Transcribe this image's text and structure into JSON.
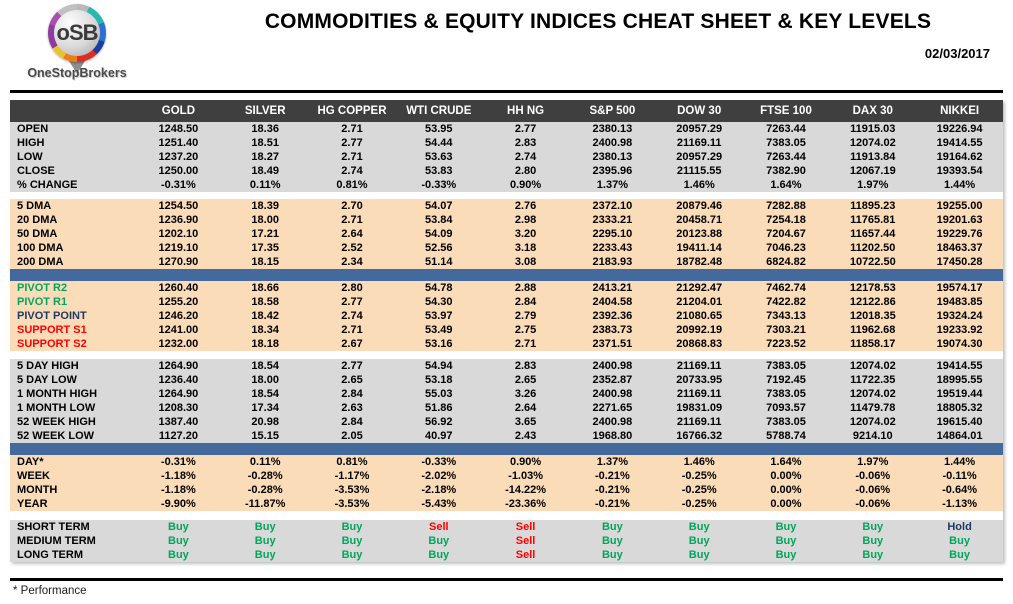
{
  "page": {
    "logo": {
      "monogram": "oSB",
      "brand": "OneStopBrokers"
    },
    "title": "COMMODITIES & EQUITY INDICES CHEAT SHEET & KEY LEVELS",
    "date": "02/03/2017",
    "footnote": "* Performance"
  },
  "colors": {
    "header_bg": "#3F3F3F",
    "gray_bg": "#D9D9D9",
    "peach_bg": "#FBDCB9",
    "divider_blue": "#44699D",
    "buy": "#00A65C",
    "sell": "#FF0000",
    "hold": "#1F3864",
    "resistance": "#00A65C",
    "support": "#FF0000",
    "pivot_point": "#1F3864"
  },
  "table": {
    "columns": [
      "GOLD",
      "SILVER",
      "HG COPPER",
      "WTI CRUDE",
      "HH NG",
      "S&P 500",
      "DOW 30",
      "FTSE 100",
      "DAX 30",
      "NIKKEI"
    ],
    "sections": [
      {
        "type": "rows",
        "bg": "gray",
        "name": "ohlc",
        "rows": [
          {
            "label": "OPEN",
            "values": [
              "1248.50",
              "18.36",
              "2.71",
              "53.95",
              "2.77",
              "2380.13",
              "20957.29",
              "7263.44",
              "11915.03",
              "19226.94"
            ]
          },
          {
            "label": "HIGH",
            "values": [
              "1251.40",
              "18.51",
              "2.77",
              "54.44",
              "2.83",
              "2400.98",
              "21169.11",
              "7383.05",
              "12074.02",
              "19414.55"
            ]
          },
          {
            "label": "LOW",
            "values": [
              "1237.20",
              "18.27",
              "2.71",
              "53.63",
              "2.74",
              "2380.13",
              "20957.29",
              "7263.44",
              "11913.84",
              "19164.62"
            ]
          },
          {
            "label": "CLOSE",
            "values": [
              "1250.00",
              "18.49",
              "2.74",
              "53.83",
              "2.80",
              "2395.96",
              "21115.55",
              "7382.90",
              "12067.19",
              "19393.54"
            ]
          },
          {
            "label": "% CHANGE",
            "values": [
              "-0.31%",
              "0.11%",
              "0.81%",
              "-0.33%",
              "0.90%",
              "1.37%",
              "1.46%",
              "1.64%",
              "1.97%",
              "1.44%"
            ]
          }
        ]
      },
      {
        "type": "gap",
        "h": 7
      },
      {
        "type": "rows",
        "bg": "peach",
        "name": "moving-averages",
        "rows": [
          {
            "label": "5 DMA",
            "values": [
              "1254.50",
              "18.39",
              "2.70",
              "54.07",
              "2.76",
              "2372.10",
              "20879.46",
              "7282.88",
              "11895.23",
              "19255.00"
            ]
          },
          {
            "label": "20 DMA",
            "values": [
              "1236.90",
              "18.00",
              "2.71",
              "53.84",
              "2.98",
              "2333.21",
              "20458.71",
              "7254.18",
              "11765.81",
              "19201.63"
            ]
          },
          {
            "label": "50 DMA",
            "values": [
              "1202.10",
              "17.21",
              "2.64",
              "54.09",
              "3.20",
              "2295.10",
              "20123.88",
              "7204.67",
              "11657.44",
              "19229.76"
            ]
          },
          {
            "label": "100 DMA",
            "values": [
              "1219.10",
              "17.35",
              "2.52",
              "52.56",
              "3.18",
              "2233.43",
              "19411.14",
              "7046.23",
              "11202.50",
              "18463.37"
            ]
          },
          {
            "label": "200 DMA",
            "values": [
              "1270.90",
              "18.15",
              "2.34",
              "51.14",
              "3.08",
              "2183.93",
              "18782.48",
              "6824.82",
              "10722.50",
              "17450.28"
            ]
          }
        ]
      },
      {
        "type": "divider",
        "h": 12
      },
      {
        "type": "rows",
        "bg": "peach",
        "name": "pivots",
        "rows": [
          {
            "label": "PIVOT R2",
            "label_color": "resistance",
            "values": [
              "1260.40",
              "18.66",
              "2.80",
              "54.78",
              "2.88",
              "2413.21",
              "21292.47",
              "7462.74",
              "12178.53",
              "19574.17"
            ]
          },
          {
            "label": "PIVOT R1",
            "label_color": "resistance",
            "values": [
              "1255.20",
              "18.58",
              "2.77",
              "54.30",
              "2.84",
              "2404.58",
              "21204.01",
              "7422.82",
              "12122.86",
              "19483.85"
            ]
          },
          {
            "label": "PIVOT POINT",
            "label_color": "pivot_point",
            "values": [
              "1246.20",
              "18.42",
              "2.74",
              "53.97",
              "2.79",
              "2392.36",
              "21080.65",
              "7343.13",
              "12018.35",
              "19324.24"
            ]
          },
          {
            "label": "SUPPORT S1",
            "label_color": "support",
            "values": [
              "1241.00",
              "18.34",
              "2.71",
              "53.49",
              "2.75",
              "2383.73",
              "20992.19",
              "7303.21",
              "11962.68",
              "19233.92"
            ]
          },
          {
            "label": "SUPPORT S2",
            "label_color": "support",
            "values": [
              "1232.00",
              "18.18",
              "2.67",
              "53.16",
              "2.71",
              "2371.51",
              "20868.83",
              "7223.52",
              "11858.17",
              "19074.30"
            ]
          }
        ]
      },
      {
        "type": "gap",
        "h": 8
      },
      {
        "type": "rows",
        "bg": "gray",
        "name": "ranges",
        "rows": [
          {
            "label": "5 DAY HIGH",
            "values": [
              "1264.90",
              "18.54",
              "2.77",
              "54.94",
              "2.83",
              "2400.98",
              "21169.11",
              "7383.05",
              "12074.02",
              "19414.55"
            ]
          },
          {
            "label": "5 DAY LOW",
            "values": [
              "1236.40",
              "18.00",
              "2.65",
              "53.18",
              "2.65",
              "2352.87",
              "20733.95",
              "7192.45",
              "11722.35",
              "18995.55"
            ]
          },
          {
            "label": "1 MONTH HIGH",
            "values": [
              "1264.90",
              "18.54",
              "2.84",
              "55.03",
              "3.26",
              "2400.98",
              "21169.11",
              "7383.05",
              "12074.02",
              "19519.44"
            ]
          },
          {
            "label": "1 MONTH LOW",
            "values": [
              "1208.30",
              "17.34",
              "2.63",
              "51.86",
              "2.64",
              "2271.65",
              "19831.09",
              "7093.57",
              "11479.78",
              "18805.32"
            ]
          },
          {
            "label": "52 WEEK HIGH",
            "values": [
              "1387.40",
              "20.98",
              "2.84",
              "56.92",
              "3.65",
              "2400.98",
              "21169.11",
              "7383.05",
              "12074.02",
              "19615.40"
            ]
          },
          {
            "label": "52 WEEK LOW",
            "values": [
              "1127.20",
              "15.15",
              "2.05",
              "40.97",
              "2.43",
              "1968.80",
              "16766.32",
              "5788.74",
              "9214.10",
              "14864.01"
            ]
          }
        ]
      },
      {
        "type": "divider",
        "h": 12
      },
      {
        "type": "rows",
        "bg": "peach",
        "name": "performance",
        "rows": [
          {
            "label": "DAY*",
            "values": [
              "-0.31%",
              "0.11%",
              "0.81%",
              "-0.33%",
              "0.90%",
              "1.37%",
              "1.46%",
              "1.64%",
              "1.97%",
              "1.44%"
            ]
          },
          {
            "label": "WEEK",
            "values": [
              "-1.18%",
              "-0.28%",
              "-1.17%",
              "-2.02%",
              "-1.03%",
              "-0.21%",
              "-0.25%",
              "0.00%",
              "-0.06%",
              "-0.11%"
            ]
          },
          {
            "label": "MONTH",
            "values": [
              "-1.18%",
              "-0.28%",
              "-3.53%",
              "-2.18%",
              "-14.22%",
              "-0.21%",
              "-0.25%",
              "0.00%",
              "-0.06%",
              "-0.64%"
            ]
          },
          {
            "label": "YEAR",
            "values": [
              "-9.90%",
              "-11.87%",
              "-3.53%",
              "-5.43%",
              "-23.36%",
              "-0.21%",
              "-0.25%",
              "0.00%",
              "-0.06%",
              "-1.13%"
            ]
          }
        ]
      },
      {
        "type": "gap",
        "h": 9
      },
      {
        "type": "rows",
        "bg": "gray",
        "name": "signals",
        "rows": [
          {
            "label": "SHORT TERM",
            "values": [
              "Buy",
              "Buy",
              "Buy",
              "Sell",
              "Sell",
              "Buy",
              "Buy",
              "Buy",
              "Buy",
              "Hold"
            ],
            "value_colors": [
              "buy",
              "buy",
              "buy",
              "sell",
              "sell",
              "buy",
              "buy",
              "buy",
              "buy",
              "hold"
            ]
          },
          {
            "label": "MEDIUM TERM",
            "values": [
              "Buy",
              "Buy",
              "Buy",
              "Buy",
              "Sell",
              "Buy",
              "Buy",
              "Buy",
              "Buy",
              "Buy"
            ],
            "value_colors": [
              "buy",
              "buy",
              "buy",
              "buy",
              "sell",
              "buy",
              "buy",
              "buy",
              "buy",
              "buy"
            ]
          },
          {
            "label": "LONG TERM",
            "values": [
              "Buy",
              "Buy",
              "Buy",
              "Buy",
              "Sell",
              "Buy",
              "Buy",
              "Buy",
              "Buy",
              "Buy"
            ],
            "value_colors": [
              "buy",
              "buy",
              "buy",
              "buy",
              "sell",
              "buy",
              "buy",
              "buy",
              "buy",
              "buy"
            ]
          }
        ]
      }
    ]
  }
}
